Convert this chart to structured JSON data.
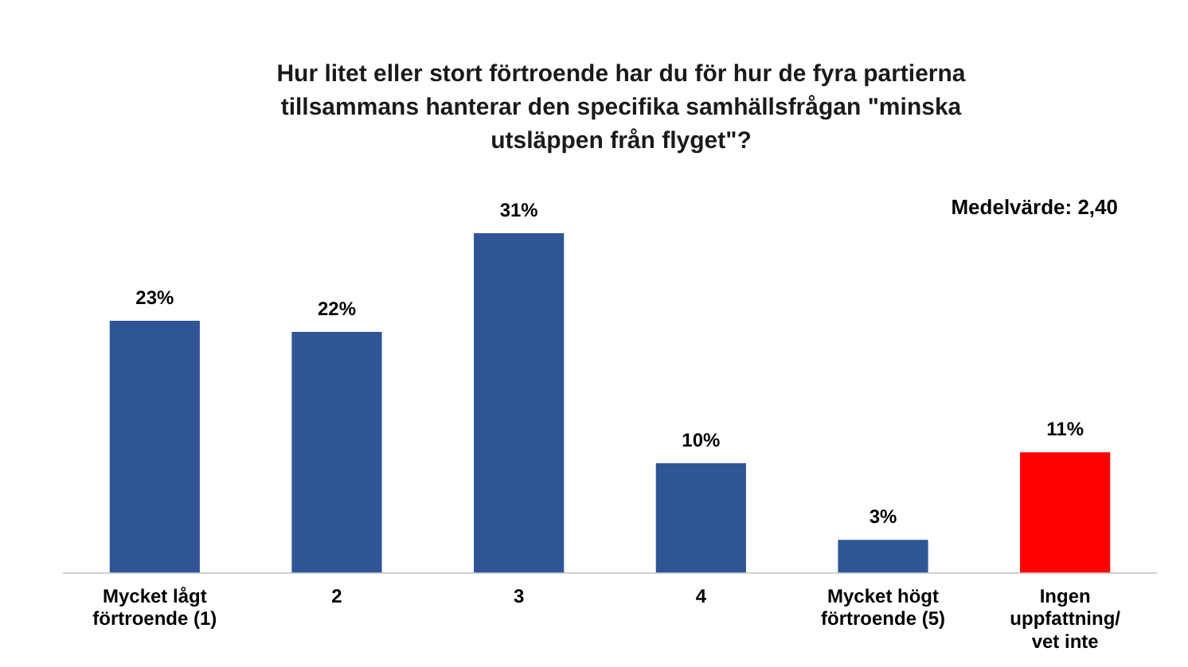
{
  "chart_data": {
    "type": "bar",
    "title": "Hur litet eller stort förtroende har du för hur de fyra partierna tillsammans hanterar den specifika samhällsfrågan \"minska utsläppen från flyget\"?",
    "categories": [
      "Mycket lågt förtroende (1)",
      "2",
      "3",
      "4",
      "Mycket högt förtroende (5)",
      "Ingen uppfattning/ vet inte"
    ],
    "values": [
      23,
      22,
      31,
      10,
      3,
      11
    ],
    "colors": [
      "#2f5597",
      "#2f5597",
      "#2f5597",
      "#2f5597",
      "#2f5597",
      "#ff0000"
    ],
    "value_labels": [
      "23%",
      "22%",
      "31%",
      "10%",
      "3%",
      "11%"
    ],
    "annotations": [
      "Medelvärde: 2,40"
    ],
    "grid": false,
    "legend": false
  }
}
